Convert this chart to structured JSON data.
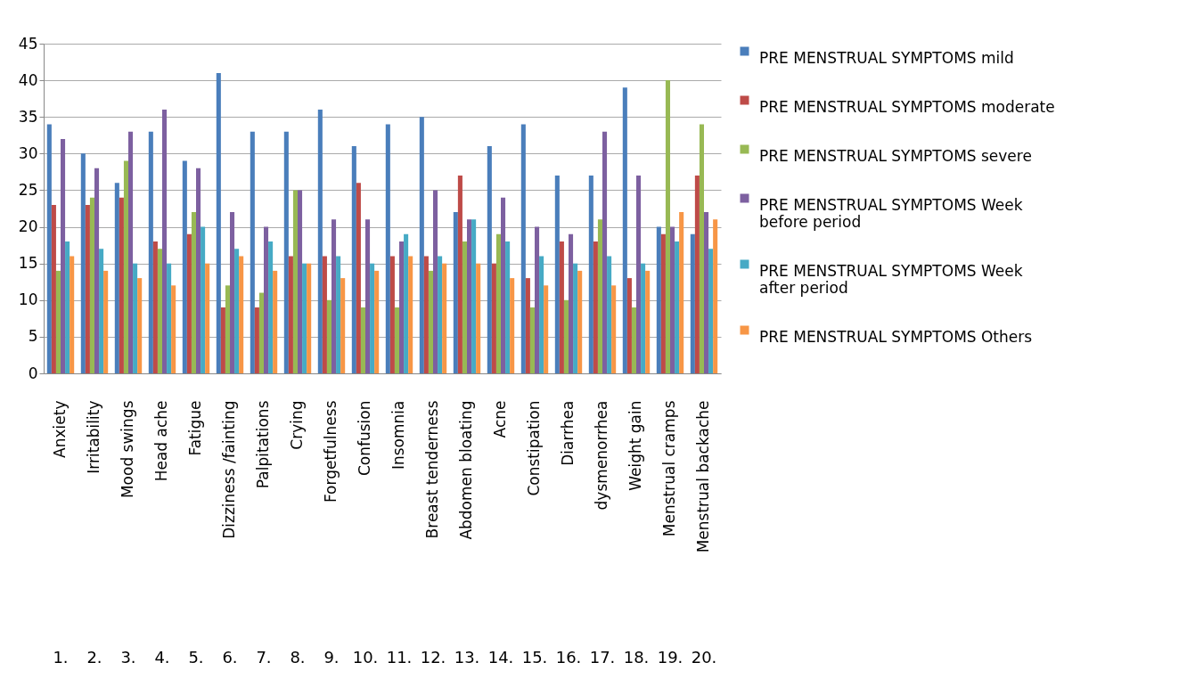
{
  "chart_data": {
    "type": "bar",
    "categories": [
      "Anxiety",
      "Irritability",
      "Mood swings",
      "Head ache",
      "Fatigue",
      "Dizziness /fainting",
      "Palpitations",
      "Crying",
      "Forgetfulness",
      "Confusion",
      "Insomnia",
      "Breast tenderness",
      "Abdomen bloating",
      "Acne",
      "Constipation",
      "Diarrhea",
      "dysmenorrhea",
      "Weight gain",
      "Menstrual cramps",
      "Menstrual backache"
    ],
    "series": [
      {
        "name": "PRE MENSTRUAL SYMPTOMS mild",
        "color": "#4a7ebb",
        "values": [
          34,
          30,
          26,
          33,
          29,
          41,
          33,
          33,
          36,
          31,
          34,
          35,
          22,
          31,
          34,
          27,
          27,
          39,
          20,
          19
        ]
      },
      {
        "name": "PRE MENSTRUAL SYMPTOMS moderate",
        "color": "#be4b48",
        "values": [
          23,
          23,
          24,
          18,
          19,
          9,
          9,
          16,
          16,
          26,
          16,
          16,
          27,
          15,
          13,
          18,
          18,
          13,
          19,
          27
        ]
      },
      {
        "name": "PRE MENSTRUAL SYMPTOMS severe",
        "color": "#98b954",
        "values": [
          14,
          24,
          29,
          17,
          22,
          12,
          11,
          25,
          10,
          9,
          9,
          14,
          18,
          19,
          9,
          10,
          21,
          9,
          40,
          34
        ]
      },
      {
        "name": "PRE MENSTRUAL SYMPTOMS Week before period",
        "color": "#7d60a0",
        "values": [
          32,
          28,
          33,
          36,
          28,
          22,
          20,
          25,
          21,
          21,
          18,
          25,
          21,
          24,
          20,
          19,
          33,
          27,
          20,
          22
        ]
      },
      {
        "name": "PRE MENSTRUAL SYMPTOMS Week after period",
        "color": "#46aac5",
        "values": [
          18,
          17,
          15,
          15,
          20,
          17,
          18,
          15,
          16,
          15,
          19,
          16,
          21,
          18,
          16,
          15,
          16,
          15,
          18,
          17
        ]
      },
      {
        "name": "PRE MENSTRUAL SYMPTOMS Others",
        "color": "#f79646",
        "values": [
          16,
          14,
          13,
          12,
          15,
          16,
          14,
          15,
          13,
          14,
          16,
          15,
          15,
          13,
          12,
          14,
          12,
          14,
          22,
          21
        ]
      }
    ],
    "annotations": [
      "1.",
      "2.",
      "3.",
      "4.",
      "5.",
      "6.",
      "7.",
      "8.",
      "9.",
      "10.",
      "11.",
      "12.",
      "13.",
      "14.",
      "15.",
      "16.",
      "17.",
      "18.",
      "19.",
      "20."
    ],
    "ylim": [
      0,
      45
    ],
    "yticks": [
      0,
      5,
      10,
      15,
      20,
      25,
      30,
      35,
      40,
      45
    ],
    "grid": "y",
    "legend": "right"
  }
}
